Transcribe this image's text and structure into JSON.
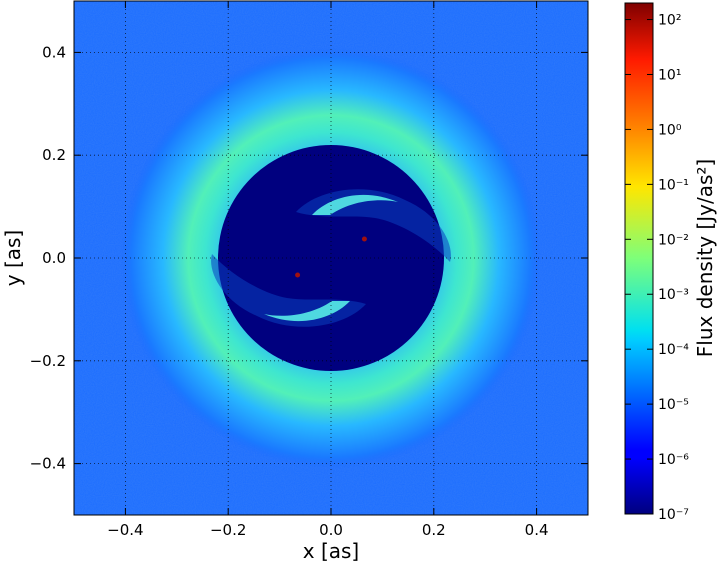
{
  "chart_data": {
    "type": "heatmap",
    "title": "",
    "xlabel": "x [as]",
    "ylabel": "y [as]",
    "xlim": [
      -0.5,
      0.5
    ],
    "ylim": [
      -0.5,
      0.5
    ],
    "x_ticks": [
      {
        "value": -0.4,
        "label": "−0.4"
      },
      {
        "value": -0.2,
        "label": "−0.2"
      },
      {
        "value": 0.0,
        "label": "0.0"
      },
      {
        "value": 0.2,
        "label": "0.2"
      },
      {
        "value": 0.4,
        "label": "0.4"
      }
    ],
    "y_ticks": [
      {
        "value": -0.4,
        "label": "−0.4"
      },
      {
        "value": -0.2,
        "label": "−0.2"
      },
      {
        "value": 0.0,
        "label": "0.0"
      },
      {
        "value": 0.2,
        "label": "0.2"
      },
      {
        "value": 0.4,
        "label": "0.4"
      }
    ],
    "grid": true,
    "grid_style": "dotted",
    "colormap": "jet",
    "colorbar": {
      "label": "Flux density [Jy/as²]",
      "scale": "log",
      "range": [
        1e-07,
        200
      ],
      "ticks": [
        {
          "exponent": -7,
          "label": "10⁻⁷"
        },
        {
          "exponent": -6,
          "label": "10⁻⁶"
        },
        {
          "exponent": -5,
          "label": "10⁻⁵"
        },
        {
          "exponent": -4,
          "label": "10⁻⁴"
        },
        {
          "exponent": -3,
          "label": "10⁻³"
        },
        {
          "exponent": -2,
          "label": "10⁻²"
        },
        {
          "exponent": -1,
          "label": "10⁻¹"
        },
        {
          "exponent": 0,
          "label": "10⁰"
        },
        {
          "exponent": 1,
          "label": "10¹"
        },
        {
          "exponent": 2,
          "label": "10²"
        }
      ]
    },
    "features": {
      "sources": [
        {
          "x": -0.065,
          "y": -0.033
        },
        {
          "x": 0.065,
          "y": 0.037
        }
      ],
      "inner_cavity_radius": 0.22,
      "ring_radius": 0.28,
      "background_level": "~1e-5"
    }
  },
  "colors": {
    "deep": "#00007f",
    "background": "#1a6cff",
    "ring": "#33e0d6",
    "source": "#a01010"
  }
}
